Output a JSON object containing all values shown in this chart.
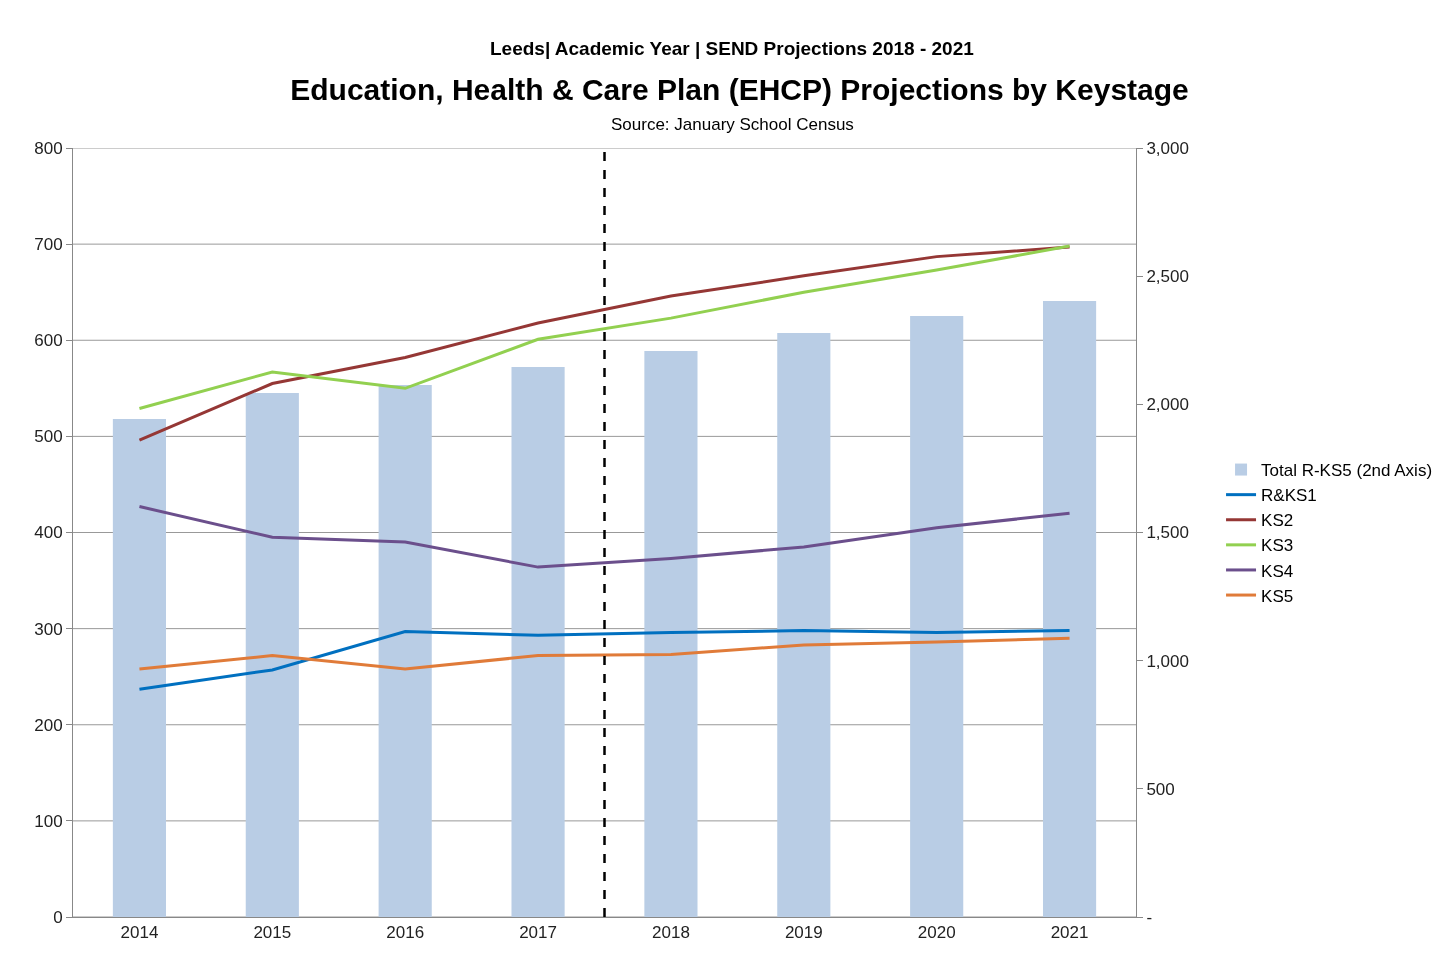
{
  "chart_data": {
    "type": "line",
    "subtitle": "Leeds| Academic Year | SEND Projections 2018 - 2021",
    "title": "Education, Health & Care Plan (EHCP) Projections by Keystage",
    "annotations": [
      "Source: January School Census"
    ],
    "x": [
      2014,
      2015,
      2016,
      2017,
      2018,
      2019,
      2020,
      2021
    ],
    "xlim": [
      2013.5,
      2021.5
    ],
    "xticks": [
      2014,
      2015,
      2016,
      2017,
      2018,
      2019,
      2020,
      2021
    ],
    "ref_lines": [
      {
        "axis": "x",
        "value": 2017.5,
        "color": "#000000",
        "line_style": "dashed"
      }
    ],
    "series": [
      {
        "name": "Total R-KS5 (2nd Axis)",
        "type": "bar",
        "axis": "y2",
        "color": "#b9cde5",
        "values": [
          1943,
          2044,
          2075,
          2146,
          2208,
          2278,
          2345,
          2403
        ]
      },
      {
        "name": "R&KS1",
        "color": "#0070c0",
        "values": [
          237,
          257,
          297,
          293,
          296,
          298,
          296,
          298
        ]
      },
      {
        "name": "KS2",
        "color": "#953735",
        "values": [
          496,
          555,
          582,
          618,
          646,
          667,
          687,
          697
        ]
      },
      {
        "name": "KS3",
        "color": "#92d050",
        "values": [
          529,
          567,
          550,
          601,
          623,
          650,
          673,
          698
        ]
      },
      {
        "name": "KS4",
        "color": "#6b4f8c",
        "values": [
          427,
          395,
          390,
          364,
          373,
          385,
          405,
          420
        ]
      },
      {
        "name": "KS5",
        "color": "#e07b39",
        "values": [
          258,
          272,
          258,
          272,
          273,
          283,
          286,
          290
        ]
      }
    ],
    "ylim": [
      0,
      800
    ],
    "yticks": [
      0,
      100,
      200,
      300,
      400,
      500,
      600,
      700,
      800
    ],
    "y2lim": [
      0,
      3000
    ],
    "y2ticks": [
      {
        "value": 0,
        "label": "-"
      },
      500,
      {
        "value": 1000,
        "label": "1,000"
      },
      {
        "value": 1500,
        "label": "1,500"
      },
      {
        "value": 2000,
        "label": "2,000"
      },
      {
        "value": 2500,
        "label": "2,500"
      },
      {
        "value": 3000,
        "label": "3,000"
      }
    ],
    "grid": "y",
    "legend": "right",
    "marker": "none",
    "line_style": "solid"
  }
}
